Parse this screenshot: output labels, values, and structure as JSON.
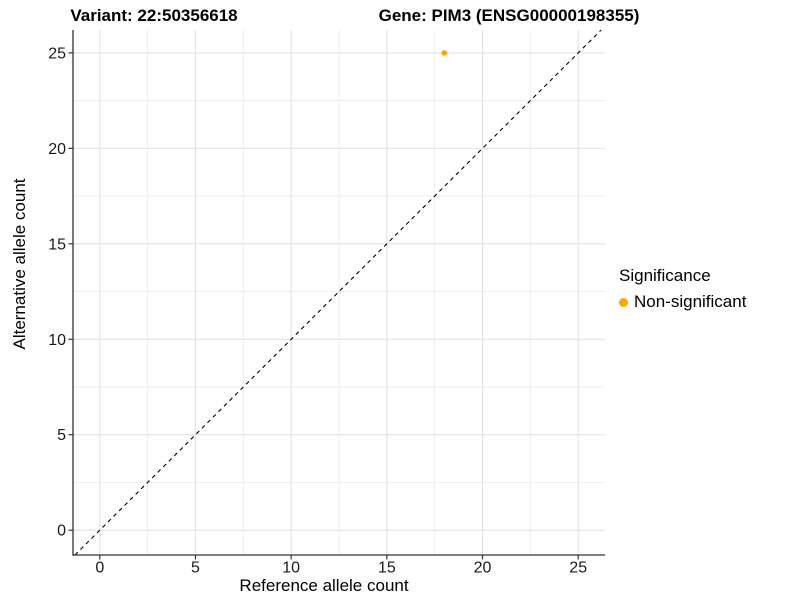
{
  "header": {
    "variant_title": "Variant: 22:50356618",
    "gene_title": "Gene: PIM3 (ENSG00000198355)"
  },
  "chart_data": {
    "type": "scatter",
    "xlabel": "Reference allele count",
    "ylabel": "Alternative allele count",
    "xlim": [
      -1.4,
      26.4
    ],
    "ylim": [
      -1.3,
      26.2
    ],
    "xticks": [
      0,
      5,
      10,
      15,
      20,
      25
    ],
    "yticks": [
      0,
      5,
      10,
      15,
      20,
      25
    ],
    "minor_ticks_x": [
      2.5,
      7.5,
      12.5,
      17.5,
      22.5
    ],
    "minor_ticks_y": [
      2.5,
      7.5,
      12.5,
      17.5,
      22.5
    ],
    "grid": true,
    "points": [
      {
        "x": 18,
        "y": 25,
        "series": "Non-significant"
      }
    ],
    "reference_line": {
      "slope": 1,
      "intercept": 0,
      "style": "dashed",
      "color": "#000000"
    },
    "series_colors": {
      "Non-significant": "#FFA500"
    },
    "legend": {
      "title": "Significance",
      "position": "right",
      "items": [
        {
          "label": "Non-significant",
          "color": "#FFA500"
        }
      ]
    }
  },
  "colors": {
    "grid_major": "#E2E2E2",
    "grid_minor": "#EDEDED",
    "axis_line": "#333333",
    "tick_label": "#1A1A1A"
  }
}
